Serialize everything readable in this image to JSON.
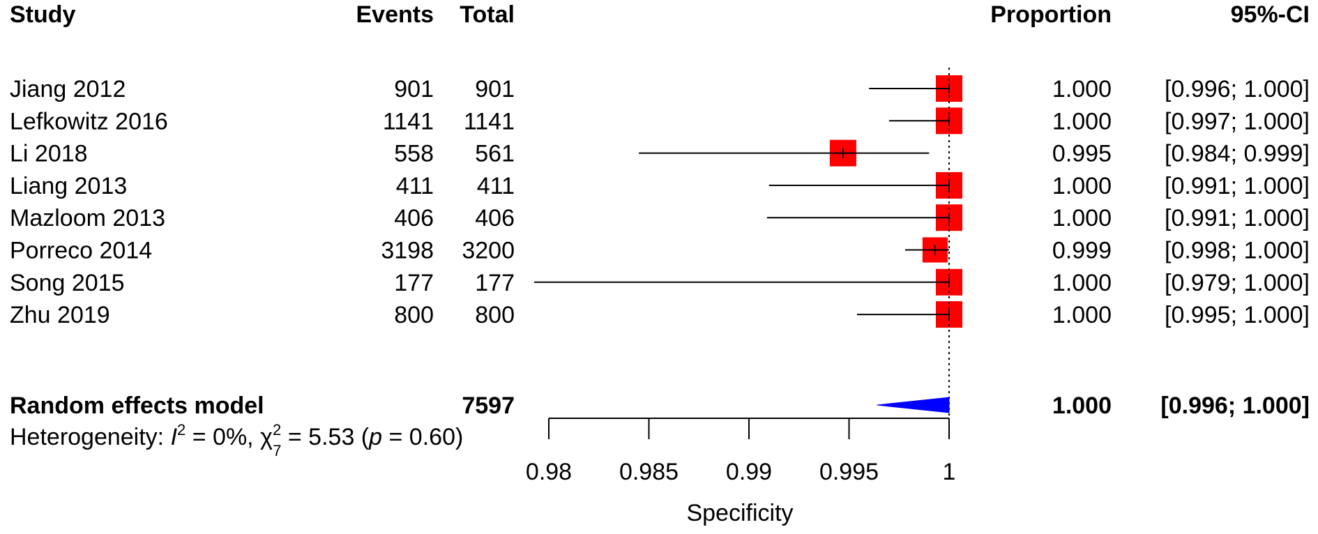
{
  "chart_data": {
    "type": "forest",
    "headers": {
      "study": "Study",
      "events": "Events",
      "total": "Total",
      "proportion": "Proportion",
      "ci": "95%-CI"
    },
    "studies": [
      {
        "name": "Jiang 2012",
        "events": "901",
        "total": "901",
        "proportion": 1.0,
        "ci_lower": 0.996,
        "ci_upper": 1.0,
        "proportion_text": "1.000",
        "ci_text": "[0.996; 1.000]",
        "weight": 1.0
      },
      {
        "name": "Lefkowitz 2016",
        "events": "1141",
        "total": "1141",
        "proportion": 1.0,
        "ci_lower": 0.997,
        "ci_upper": 1.0,
        "proportion_text": "1.000",
        "ci_text": "[0.997; 1.000]",
        "weight": 1.0
      },
      {
        "name": "Li 2018",
        "events": "558",
        "total": "561",
        "proportion": 0.9947,
        "ci_lower": 0.9845,
        "ci_upper": 0.999,
        "proportion_text": "0.995",
        "ci_text": "[0.984; 0.999]",
        "weight": 1.0
      },
      {
        "name": "Liang 2013",
        "events": "411",
        "total": "411",
        "proportion": 1.0,
        "ci_lower": 0.991,
        "ci_upper": 1.0,
        "proportion_text": "1.000",
        "ci_text": "[0.991; 1.000]",
        "weight": 1.0
      },
      {
        "name": "Mazloom 2013",
        "events": "406",
        "total": "406",
        "proportion": 1.0,
        "ci_lower": 0.9909,
        "ci_upper": 1.0,
        "proportion_text": "1.000",
        "ci_text": "[0.991; 1.000]",
        "weight": 1.0
      },
      {
        "name": "Porreco 2014",
        "events": "3198",
        "total": "3200",
        "proportion": 0.9993,
        "ci_lower": 0.9978,
        "ci_upper": 1.0,
        "proportion_text": "0.999",
        "ci_text": "[0.998; 1.000]",
        "weight": 0.95
      },
      {
        "name": "Song 2015",
        "events": "177",
        "total": "177",
        "proportion": 1.0,
        "ci_lower": 0.979,
        "ci_upper": 1.0,
        "proportion_text": "1.000",
        "ci_text": "[0.979; 1.000]",
        "weight": 1.0
      },
      {
        "name": "Zhu 2019",
        "events": "800",
        "total": "800",
        "proportion": 1.0,
        "ci_lower": 0.9954,
        "ci_upper": 1.0,
        "proportion_text": "1.000",
        "ci_text": "[0.995; 1.000]",
        "weight": 1.0
      }
    ],
    "pooled": {
      "label": "Random effects model",
      "total": "7597",
      "estimate": 1.0,
      "ci_lower": 0.9964,
      "ci_upper": 1.0,
      "proportion_text": "1.000",
      "ci_text": "[0.996; 1.000]"
    },
    "heterogeneity": {
      "prefix": "Heterogeneity: ",
      "i2_symbol": "I",
      "i2_sup": "2",
      "i2_value": " = 0%, ",
      "chi_symbol": "χ",
      "chi_sup": "2",
      "chi_sub": "7",
      "chi_value": " = 5.53 (",
      "p_symbol": "p",
      "p_value": " = 0.60)"
    },
    "x_axis": {
      "label": "Specificity",
      "xlim": [
        0.98,
        1.0
      ],
      "ticks": [
        0.98,
        0.985,
        0.99,
        0.995,
        1.0
      ],
      "tick_labels": [
        "0.98",
        "0.985",
        "0.99",
        "0.995",
        "1"
      ],
      "reference_line": 1.0
    },
    "colors": {
      "square": "#ff0000",
      "diamond": "#0000ff",
      "line": "#000000"
    }
  }
}
